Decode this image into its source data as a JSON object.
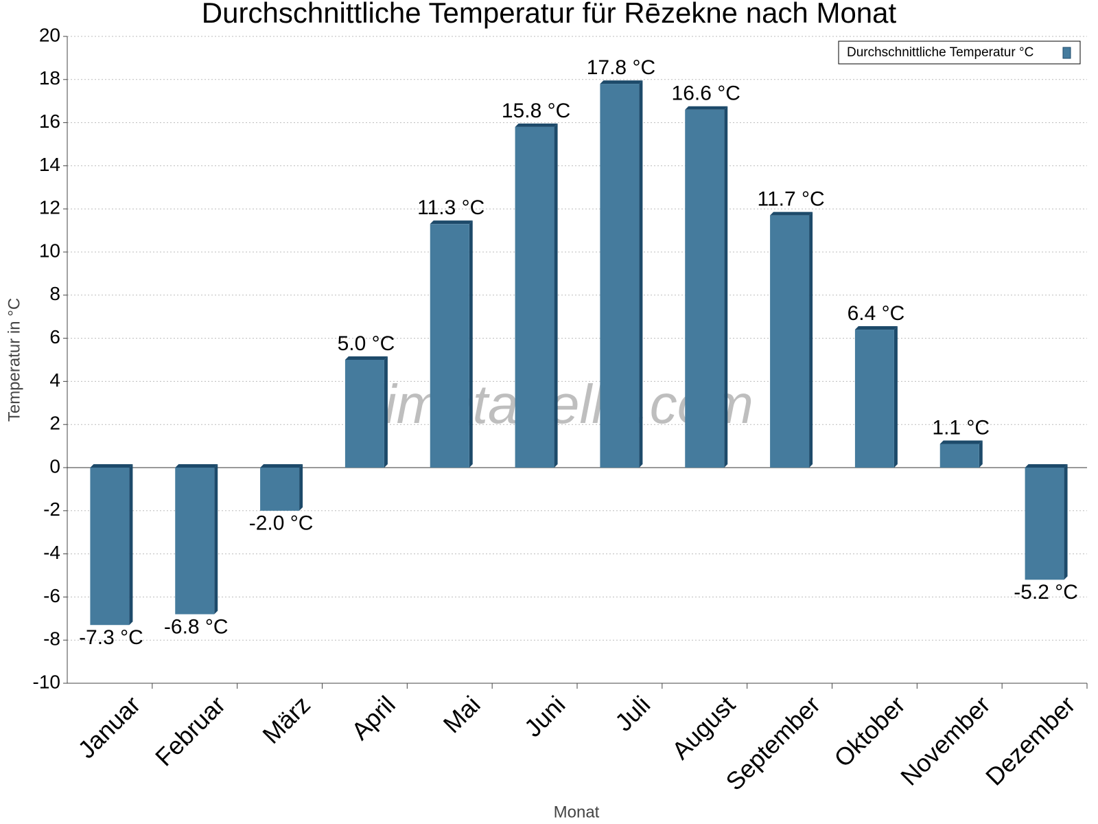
{
  "chart_data": {
    "type": "bar",
    "title": "Durchschnittliche Temperatur für Rēzekne nach Monat",
    "x_label": "Monat",
    "y_label": "Temperatur in °C",
    "watermark": "klimatabelle.com",
    "legend_position": "upper right",
    "series": [
      {
        "name": "Durchschnittliche Temperatur °C",
        "color": "#457b9d",
        "values": [
          -7.3,
          -6.8,
          -2.0,
          5.0,
          11.3,
          15.8,
          17.8,
          16.6,
          11.7,
          6.4,
          1.1,
          -5.2
        ],
        "value_labels": [
          "-7.3 °C",
          "-6.8 °C",
          "-2.0 °C",
          "5.0 °C",
          "11.3 °C",
          "15.8 °C",
          "17.8 °C",
          "16.6 °C",
          "11.7 °C",
          "6.4 °C",
          "1.1 °C",
          "-5.2 °C"
        ]
      }
    ],
    "categories": [
      "Januar",
      "Februar",
      "März",
      "April",
      "Mai",
      "Juni",
      "Juli",
      "August",
      "September",
      "Oktober",
      "November",
      "Dezember"
    ],
    "ylim": [
      -10,
      20
    ],
    "yticks": [
      -10,
      -8,
      -6,
      -4,
      -2,
      0,
      2,
      4,
      6,
      8,
      10,
      12,
      14,
      16,
      18,
      20
    ],
    "grid": true
  }
}
